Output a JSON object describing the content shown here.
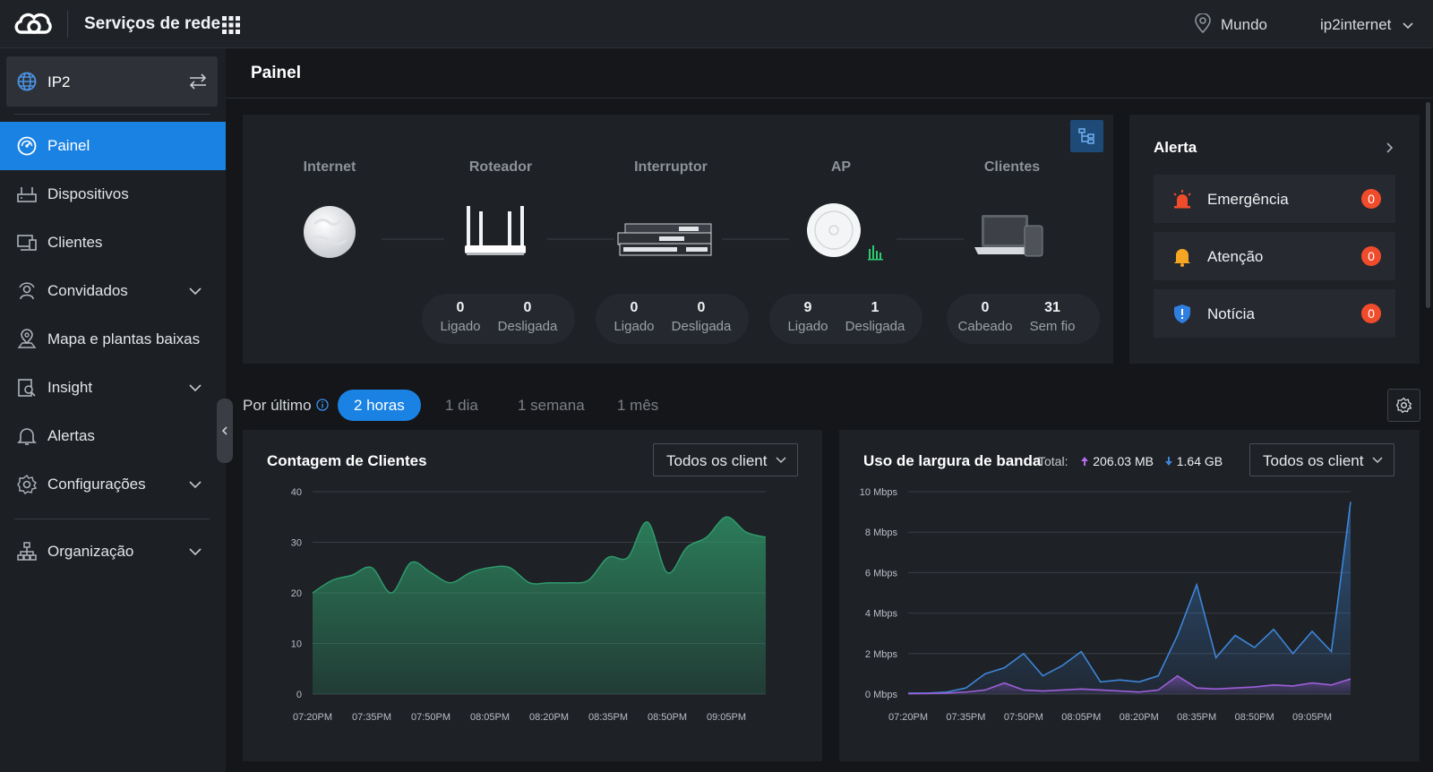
{
  "header": {
    "app_title": "Serviços de rede",
    "location": "Mundo",
    "account": "ip2internet"
  },
  "sidebar": {
    "site_name": "IP2",
    "items": [
      {
        "label": "Painel",
        "icon": "dashboard-icon",
        "active": true
      },
      {
        "label": "Dispositivos",
        "icon": "router-icon"
      },
      {
        "label": "Clientes",
        "icon": "devices-icon"
      },
      {
        "label": "Convidados",
        "icon": "guest-icon",
        "expandable": true
      },
      {
        "label": "Mapa e plantas baixas",
        "icon": "map-pin-icon"
      },
      {
        "label": "Insight",
        "icon": "insight-icon",
        "expandable": true
      },
      {
        "label": "Alertas",
        "icon": "bell-icon"
      },
      {
        "label": "Configurações",
        "icon": "gear-icon",
        "expandable": true
      },
      {
        "label": "Organização",
        "icon": "org-icon",
        "expandable": true
      }
    ]
  },
  "page": {
    "title": "Painel"
  },
  "topology": {
    "nodes": [
      {
        "label": "Internet",
        "icon": "internet-globe-icon"
      },
      {
        "label": "Roteador",
        "icon": "router-device-icon",
        "stats": [
          {
            "value": "0",
            "caption": "Ligado"
          },
          {
            "value": "0",
            "caption": "Desligada"
          }
        ]
      },
      {
        "label": "Interruptor",
        "icon": "switch-device-icon",
        "stats": [
          {
            "value": "0",
            "caption": "Ligado"
          },
          {
            "value": "0",
            "caption": "Desligada"
          }
        ]
      },
      {
        "label": "AP",
        "icon": "access-point-icon",
        "stats": [
          {
            "value": "9",
            "caption": "Ligado"
          },
          {
            "value": "1",
            "caption": "Desligada"
          }
        ]
      },
      {
        "label": "Clientes",
        "icon": "client-devices-icon",
        "stats": [
          {
            "value": "0",
            "caption": "Cabeado"
          },
          {
            "value": "31",
            "caption": "Sem fio"
          }
        ]
      }
    ]
  },
  "alerts": {
    "title": "Alerta",
    "items": [
      {
        "label": "Emergência",
        "count": "0",
        "icon": "siren-icon",
        "color": "#f04c2c"
      },
      {
        "label": "Atenção",
        "count": "0",
        "icon": "bell-warning-icon",
        "color": "#f5a623"
      },
      {
        "label": "Notícia",
        "count": "0",
        "icon": "shield-info-icon",
        "color": "#2f7fe0"
      }
    ]
  },
  "time_range": {
    "label": "Por último",
    "options": [
      "2 horas",
      "1 dia",
      "1 semana",
      "1 mês"
    ],
    "selected": "2 horas"
  },
  "client_count": {
    "title": "Contagem de Clientes",
    "filter": "Todos os client"
  },
  "bandwidth": {
    "title": "Uso de largura de banda",
    "total_label": "Total:",
    "upload": "206.03 MB",
    "download": "1.64 GB",
    "filter": "Todos os client"
  },
  "chart_data": [
    {
      "type": "area",
      "title": "Contagem de Clientes",
      "x": [
        "07:20PM",
        "07:25PM",
        "07:30PM",
        "07:35PM",
        "07:40PM",
        "07:45PM",
        "07:50PM",
        "07:55PM",
        "08:00PM",
        "08:05PM",
        "08:10PM",
        "08:15PM",
        "08:20PM",
        "08:25PM",
        "08:30PM",
        "08:35PM",
        "08:40PM",
        "08:45PM",
        "08:50PM",
        "08:55PM",
        "09:00PM",
        "09:05PM",
        "09:10PM",
        "09:15PM"
      ],
      "x_ticks": [
        "07:20PM",
        "07:35PM",
        "07:50PM",
        "08:05PM",
        "08:20PM",
        "08:35PM",
        "08:50PM",
        "09:05PM"
      ],
      "series": [
        {
          "values": [
            20,
            22.5,
            23.5,
            25,
            20,
            26,
            24,
            22,
            24,
            25,
            25,
            22,
            22,
            22,
            22.5,
            27,
            27,
            34,
            24,
            29,
            31,
            35,
            32,
            31
          ]
        }
      ],
      "yticks": [
        0,
        10,
        20,
        30,
        40
      ],
      "ylim": [
        0,
        40
      ],
      "color": "#2f9a6b"
    },
    {
      "type": "area",
      "title": "Uso de largura de banda",
      "x": [
        "07:20PM",
        "07:25PM",
        "07:30PM",
        "07:35PM",
        "07:40PM",
        "07:45PM",
        "07:50PM",
        "07:55PM",
        "08:00PM",
        "08:05PM",
        "08:10PM",
        "08:15PM",
        "08:20PM",
        "08:25PM",
        "08:30PM",
        "08:35PM",
        "08:40PM",
        "08:45PM",
        "08:50PM",
        "08:55PM",
        "09:00PM",
        "09:05PM",
        "09:10PM",
        "09:15PM"
      ],
      "x_ticks": [
        "07:20PM",
        "07:35PM",
        "07:50PM",
        "08:05PM",
        "08:20PM",
        "08:35PM",
        "08:50PM",
        "09:05PM"
      ],
      "yticks": [
        "0 Mbps",
        "2 Mbps",
        "4 Mbps",
        "6 Mbps",
        "8 Mbps",
        "10 Mbps"
      ],
      "ylim": [
        0,
        10
      ],
      "series": [
        {
          "values": [
            0.05,
            0.05,
            0.1,
            0.3,
            1.0,
            1.3,
            2.0,
            0.9,
            1.4,
            2.1,
            0.6,
            0.7,
            0.6,
            0.9,
            2.9,
            5.4,
            1.8,
            2.9,
            2.3,
            3.2,
            2.0,
            3.1,
            2.1,
            9.5
          ],
          "color": "#3d86d8"
        },
        {
          "values": [
            0.02,
            0.03,
            0.05,
            0.1,
            0.2,
            0.55,
            0.2,
            0.15,
            0.2,
            0.25,
            0.2,
            0.15,
            0.1,
            0.2,
            0.9,
            0.3,
            0.25,
            0.3,
            0.35,
            0.45,
            0.4,
            0.55,
            0.45,
            0.75
          ],
          "color": "#9c5fd9"
        }
      ]
    }
  ]
}
